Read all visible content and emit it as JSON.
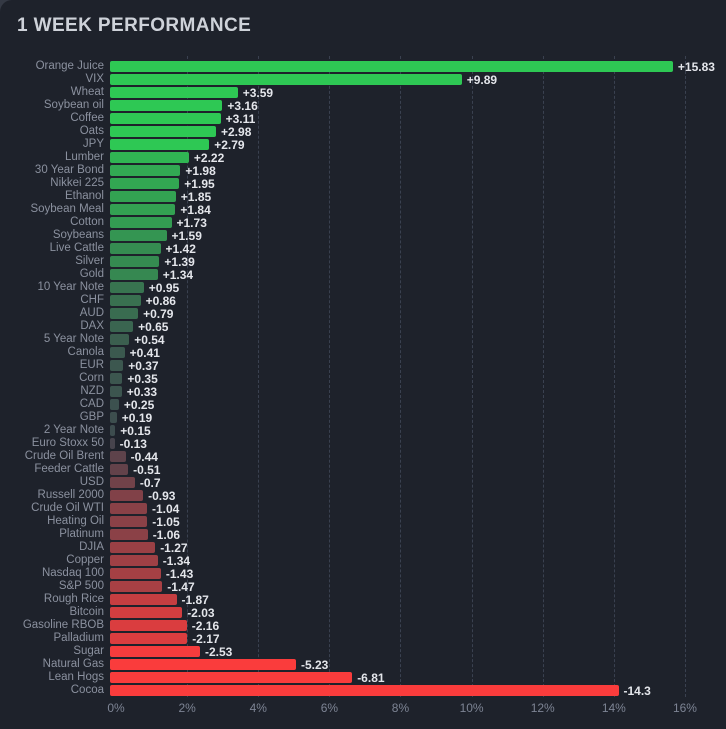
{
  "title": "1 WEEK PERFORMANCE",
  "colors": {
    "background_outer": "#343944",
    "panel_background": "#1e222b",
    "title_text": "#ced2d9",
    "category_label_text": "#8b919f",
    "value_label_text": "#e4e6eb",
    "axis_tick_text": "#7d8494",
    "gridline": "#3a4150",
    "positive_full": "#2ec854",
    "negative_full": "#fa3c3c",
    "neutral_near_zero": "#3e444e"
  },
  "chart_data": {
    "type": "bar",
    "orientation": "horizontal",
    "title": "1 WEEK PERFORMANCE",
    "xlabel": "",
    "ylabel": "",
    "value_unit": "%",
    "bar_length_note": "bar length equals absolute value of weekly % change; color hue encodes sign, intensity encodes magnitude",
    "grid": "vertical dashed gridlines at each 2% tick",
    "x_axis": {
      "min": 0,
      "max": 16,
      "ticks": [
        "0%",
        "2%",
        "4%",
        "6%",
        "8%",
        "10%",
        "12%",
        "14%",
        "16%"
      ]
    },
    "items": [
      {
        "label": "Orange Juice",
        "value": 15.83,
        "display": "+15.83",
        "color": "#2ec854"
      },
      {
        "label": "VIX",
        "value": 9.89,
        "display": "+9.89",
        "color": "#2ec854"
      },
      {
        "label": "Wheat",
        "value": 3.59,
        "display": "+3.59",
        "color": "#2ec854"
      },
      {
        "label": "Soybean oil",
        "value": 3.16,
        "display": "+3.16",
        "color": "#2ec854"
      },
      {
        "label": "Coffee",
        "value": 3.11,
        "display": "+3.11",
        "color": "#2ec854"
      },
      {
        "label": "Oats",
        "value": 2.98,
        "display": "+2.98",
        "color": "#2ec854"
      },
      {
        "label": "JPY",
        "value": 2.79,
        "display": "+2.79",
        "color": "#2ec854"
      },
      {
        "label": "Lumber",
        "value": 2.22,
        "display": "+2.22",
        "color": "#30b553"
      },
      {
        "label": "30 Year Bond",
        "value": 1.98,
        "display": "+1.98",
        "color": "#32a953"
      },
      {
        "label": "Nikkei 225",
        "value": 1.95,
        "display": "+1.95",
        "color": "#32a752"
      },
      {
        "label": "Ethanol",
        "value": 1.85,
        "display": "+1.85",
        "color": "#33a252"
      },
      {
        "label": "Soybean Meal",
        "value": 1.84,
        "display": "+1.84",
        "color": "#33a152"
      },
      {
        "label": "Cotton",
        "value": 1.73,
        "display": "+1.73",
        "color": "#339c52"
      },
      {
        "label": "Soybeans",
        "value": 1.59,
        "display": "+1.59",
        "color": "#349552"
      },
      {
        "label": "Live Cattle",
        "value": 1.42,
        "display": "+1.42",
        "color": "#358c51"
      },
      {
        "label": "Silver",
        "value": 1.39,
        "display": "+1.39",
        "color": "#358b51"
      },
      {
        "label": "Gold",
        "value": 1.34,
        "display": "+1.34",
        "color": "#368851"
      },
      {
        "label": "10 Year Note",
        "value": 0.95,
        "display": "+0.95",
        "color": "#387450"
      },
      {
        "label": "CHF",
        "value": 0.86,
        "display": "+0.86",
        "color": "#397050"
      },
      {
        "label": "AUD",
        "value": 0.79,
        "display": "+0.79",
        "color": "#396c50"
      },
      {
        "label": "DAX",
        "value": 0.65,
        "display": "+0.65",
        "color": "#3a6550"
      },
      {
        "label": "5 Year Note",
        "value": 0.54,
        "display": "+0.54",
        "color": "#3b5f4f"
      },
      {
        "label": "Canola",
        "value": 0.41,
        "display": "+0.41",
        "color": "#3b594f"
      },
      {
        "label": "EUR",
        "value": 0.37,
        "display": "+0.37",
        "color": "#3c574f"
      },
      {
        "label": "Corn",
        "value": 0.35,
        "display": "+0.35",
        "color": "#3c564f"
      },
      {
        "label": "NZD",
        "value": 0.33,
        "display": "+0.33",
        "color": "#3c554f"
      },
      {
        "label": "CAD",
        "value": 0.25,
        "display": "+0.25",
        "color": "#3c514f"
      },
      {
        "label": "GBP",
        "value": 0.19,
        "display": "+0.19",
        "color": "#3d4e4e"
      },
      {
        "label": "2 Year Note",
        "value": 0.15,
        "display": "+0.15",
        "color": "#3d4c4e"
      },
      {
        "label": "Euro Stoxx 50",
        "value": -0.13,
        "display": "-0.13",
        "color": "#47444d"
      },
      {
        "label": "Crude Oil Brent",
        "value": -0.44,
        "display": "-0.44",
        "color": "#5e434b"
      },
      {
        "label": "Feeder Cattle",
        "value": -0.51,
        "display": "-0.51",
        "color": "#63424a"
      },
      {
        "label": "USD",
        "value": -0.7,
        "display": "-0.7",
        "color": "#714249"
      },
      {
        "label": "Russell 2000",
        "value": -0.93,
        "display": "-0.93",
        "color": "#814148"
      },
      {
        "label": "Crude Oil WTI",
        "value": -1.04,
        "display": "-1.04",
        "color": "#894147"
      },
      {
        "label": "Heating Oil",
        "value": -1.05,
        "display": "-1.05",
        "color": "#8a4147"
      },
      {
        "label": "Platinum",
        "value": -1.06,
        "display": "-1.06",
        "color": "#8b4147"
      },
      {
        "label": "DJIA",
        "value": -1.27,
        "display": "-1.27",
        "color": "#9a4045"
      },
      {
        "label": "Copper",
        "value": -1.34,
        "display": "-1.34",
        "color": "#9f4045"
      },
      {
        "label": "Nasdaq 100",
        "value": -1.43,
        "display": "-1.43",
        "color": "#a54044"
      },
      {
        "label": "S&P 500",
        "value": -1.47,
        "display": "-1.47",
        "color": "#a84044"
      },
      {
        "label": "Rough Rice",
        "value": -1.87,
        "display": "-1.87",
        "color": "#c53e41"
      },
      {
        "label": "Bitcoin",
        "value": -2.03,
        "display": "-2.03",
        "color": "#d13e40"
      },
      {
        "label": "Gasoline RBOB",
        "value": -2.16,
        "display": "-2.16",
        "color": "#da3d3f"
      },
      {
        "label": "Palladium",
        "value": -2.17,
        "display": "-2.17",
        "color": "#db3d3f"
      },
      {
        "label": "Sugar",
        "value": -2.53,
        "display": "-2.53",
        "color": "#f53c3d"
      },
      {
        "label": "Natural Gas",
        "value": -5.23,
        "display": "-5.23",
        "color": "#fa3c3c"
      },
      {
        "label": "Lean Hogs",
        "value": -6.81,
        "display": "-6.81",
        "color": "#fa3c3c"
      },
      {
        "label": "Cocoa",
        "value": -14.3,
        "display": "-14.3",
        "color": "#fa3c3c"
      }
    ]
  }
}
